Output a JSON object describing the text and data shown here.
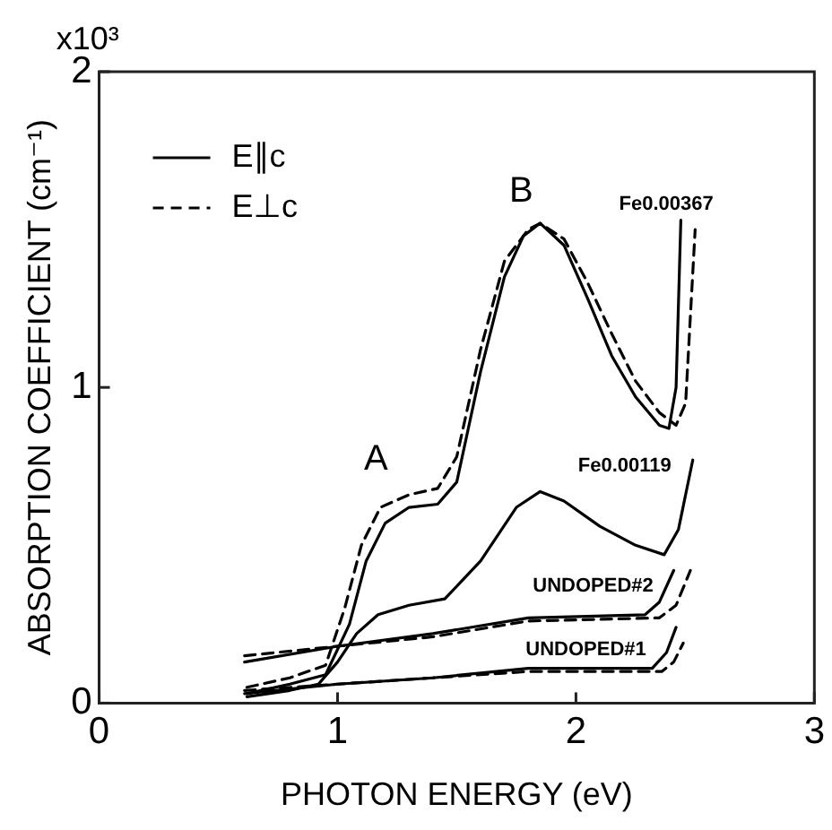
{
  "chart_data": {
    "type": "line",
    "xlabel": "PHOTON ENERGY (eV)",
    "ylabel": "ABSORPTION COEFFICIENT (cm⁻¹)",
    "xlim": [
      0,
      3
    ],
    "xticks": [
      0,
      1,
      2,
      3
    ],
    "ylim": [
      0,
      2
    ],
    "yticks": [
      0,
      1,
      2
    ],
    "grid": false,
    "marker": "none",
    "legend": "top left",
    "series": [
      {
        "name": "E∥c",
        "color": "#000000",
        "line_style": "solid",
        "x": [
          0.62,
          0.8,
          0.95,
          1.05,
          1.12,
          1.2,
          1.3,
          1.42,
          1.5,
          1.6,
          1.7,
          1.78,
          1.85,
          1.95,
          2.05,
          2.15,
          2.25,
          2.35,
          2.39,
          2.42,
          2.44
        ],
        "values": [
          0.03,
          0.06,
          0.09,
          0.25,
          0.45,
          0.57,
          0.62,
          0.63,
          0.7,
          1.05,
          1.35,
          1.48,
          1.52,
          1.45,
          1.28,
          1.1,
          0.97,
          0.88,
          0.87,
          1.0,
          1.53
        ]
      },
      {
        "name": "E⊥c",
        "color": "#000000",
        "line_style": "dashed",
        "x": [
          0.62,
          0.8,
          0.95,
          1.03,
          1.1,
          1.18,
          1.3,
          1.42,
          1.5,
          1.6,
          1.7,
          1.8,
          1.85,
          1.95,
          2.05,
          2.15,
          2.25,
          2.35,
          2.42,
          2.46,
          2.5
        ],
        "values": [
          0.05,
          0.08,
          0.12,
          0.3,
          0.5,
          0.62,
          0.66,
          0.68,
          0.78,
          1.12,
          1.4,
          1.5,
          1.52,
          1.47,
          1.33,
          1.17,
          1.02,
          0.92,
          0.88,
          0.95,
          1.5
        ]
      },
      {
        "color": "#000000",
        "line_style": "solid",
        "x": [
          0.62,
          0.8,
          0.92,
          1.0,
          1.08,
          1.17,
          1.3,
          1.45,
          1.6,
          1.75,
          1.85,
          1.95,
          2.1,
          2.25,
          2.37,
          2.43,
          2.49
        ],
        "values": [
          0.02,
          0.04,
          0.06,
          0.13,
          0.22,
          0.28,
          0.31,
          0.33,
          0.45,
          0.62,
          0.67,
          0.64,
          0.56,
          0.5,
          0.47,
          0.55,
          0.77
        ]
      },
      {
        "color": "#000000",
        "line_style": "solid",
        "x": [
          0.61,
          1.0,
          1.4,
          1.8,
          2.29,
          2.35,
          2.41
        ],
        "values": [
          0.13,
          0.18,
          0.22,
          0.27,
          0.28,
          0.32,
          0.42
        ]
      },
      {
        "color": "#000000",
        "line_style": "dashed",
        "x": [
          0.61,
          1.0,
          1.4,
          1.8,
          2.35,
          2.42,
          2.48
        ],
        "values": [
          0.15,
          0.18,
          0.21,
          0.26,
          0.27,
          0.31,
          0.42
        ]
      },
      {
        "color": "#000000",
        "line_style": "solid",
        "x": [
          0.61,
          1.0,
          1.4,
          1.8,
          2.32,
          2.38,
          2.42
        ],
        "values": [
          0.03,
          0.06,
          0.08,
          0.11,
          0.11,
          0.16,
          0.24
        ]
      },
      {
        "color": "#000000",
        "line_style": "dashed",
        "x": [
          0.61,
          1.0,
          1.4,
          1.8,
          2.36,
          2.41,
          2.45
        ],
        "values": [
          0.04,
          0.06,
          0.08,
          0.1,
          0.1,
          0.13,
          0.19
        ]
      }
    ],
    "annotations": [
      "x10³",
      "A",
      "B",
      "Fe0.00367",
      "Fe0.00119",
      "UNDOPED#2",
      "UNDOPED#1"
    ]
  }
}
